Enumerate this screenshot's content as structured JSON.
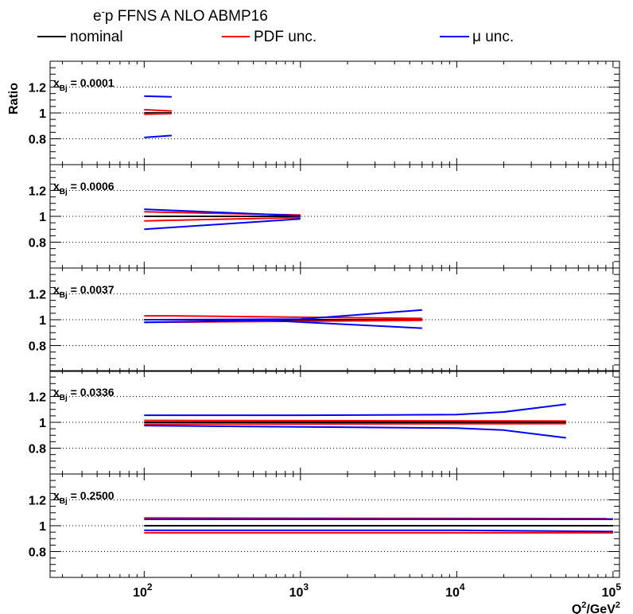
{
  "title_main": "e",
  "title_sup": "-",
  "title_rest": "p FFNS A NLO ABMP16",
  "legend": [
    {
      "label": "nominal",
      "color": "#000000"
    },
    {
      "label": "PDF unc.",
      "color": "#ff0000"
    },
    {
      "label": "μ unc.",
      "color": "#0000ff"
    }
  ],
  "chart_data": {
    "type": "line",
    "title": "e-p FFNS A NLO ABMP16",
    "xlabel": "Q2/GeV2",
    "xlabel_parts": {
      "q": "Q",
      "q_sup": "2",
      "mid": "/GeV",
      "gev_sup": "2"
    },
    "ylabel": "Ratio",
    "xscale": "log",
    "xlim": [
      25,
      110000
    ],
    "ylim": [
      0.6,
      1.4
    ],
    "x_ticks": [
      {
        "base": "10",
        "exp": "2",
        "value": 100
      },
      {
        "base": "10",
        "exp": "3",
        "value": 1000
      },
      {
        "base": "10",
        "exp": "4",
        "value": 10000
      },
      {
        "base": "10",
        "exp": "5",
        "value": 100000
      }
    ],
    "y_ticks": [
      "0.8",
      "1",
      "1.2"
    ],
    "y_tick_values": [
      0.8,
      1.0,
      1.2
    ],
    "panels": [
      {
        "label_main": "x",
        "label_sub": "Bj",
        "label_value": " = 0.0001",
        "series": [
          {
            "name": "nominal",
            "color": "#000000",
            "x": [
              100,
              150
            ],
            "y": [
              1.0,
              1.0
            ]
          },
          {
            "name": "PDF unc. upper",
            "color": "#ff0000",
            "x": [
              100,
              150
            ],
            "y": [
              1.025,
              1.015
            ]
          },
          {
            "name": "PDF unc. lower",
            "color": "#ff0000",
            "x": [
              100,
              150
            ],
            "y": [
              0.99,
              0.995
            ]
          },
          {
            "name": "μ unc. upper",
            "color": "#0000ff",
            "x": [
              100,
              150
            ],
            "y": [
              1.13,
              1.125
            ]
          },
          {
            "name": "μ unc. lower",
            "color": "#0000ff",
            "x": [
              100,
              150
            ],
            "y": [
              0.81,
              0.825
            ]
          }
        ]
      },
      {
        "label_main": "x",
        "label_sub": "Bj",
        "label_value": " = 0.0006",
        "series": [
          {
            "name": "nominal",
            "color": "#000000",
            "x": [
              100,
              1000
            ],
            "y": [
              1.0,
              1.0
            ]
          },
          {
            "name": "PDF unc. upper",
            "color": "#ff0000",
            "x": [
              100,
              1000
            ],
            "y": [
              1.035,
              1.01
            ]
          },
          {
            "name": "PDF unc. lower",
            "color": "#ff0000",
            "x": [
              100,
              1000
            ],
            "y": [
              0.965,
              0.99
            ]
          },
          {
            "name": "μ unc. upper",
            "color": "#0000ff",
            "x": [
              100,
              1000
            ],
            "y": [
              1.055,
              1.005
            ]
          },
          {
            "name": "μ unc. lower",
            "color": "#0000ff",
            "x": [
              100,
              1000
            ],
            "y": [
              0.9,
              0.98
            ]
          }
        ]
      },
      {
        "label_main": "x",
        "label_sub": "Bj",
        "label_value": " = 0.0037",
        "series": [
          {
            "name": "nominal",
            "color": "#000000",
            "x": [
              100,
              6000
            ],
            "y": [
              1.0,
              1.0
            ]
          },
          {
            "name": "PDF unc. upper",
            "color": "#ff0000",
            "x": [
              100,
              150,
              6000
            ],
            "y": [
              1.03,
              1.03,
              1.01
            ]
          },
          {
            "name": "PDF unc. lower",
            "color": "#ff0000",
            "x": [
              100,
              6000
            ],
            "y": [
              0.98,
              0.995
            ]
          },
          {
            "name": "μ unc. upper",
            "color": "#0000ff",
            "x": [
              100,
              1000,
              6000
            ],
            "y": [
              1.0,
              1.005,
              1.075
            ]
          },
          {
            "name": "μ unc. lower",
            "color": "#0000ff",
            "x": [
              100,
              600,
              6000
            ],
            "y": [
              0.98,
              0.995,
              0.935
            ]
          }
        ]
      },
      {
        "label_main": "x",
        "label_sub": "Bj",
        "label_value": " = 0.0336",
        "series": [
          {
            "name": "nominal",
            "color": "#000000",
            "x": [
              100,
              50000
            ],
            "y": [
              1.0,
              1.0
            ]
          },
          {
            "name": "PDF unc. upper",
            "color": "#ff0000",
            "x": [
              100,
              50000
            ],
            "y": [
              1.015,
              1.01
            ]
          },
          {
            "name": "PDF unc. lower",
            "color": "#ff0000",
            "x": [
              100,
              50000
            ],
            "y": [
              0.985,
              0.99
            ]
          },
          {
            "name": "μ unc. upper",
            "color": "#0000ff",
            "x": [
              100,
              1000,
              10000,
              20000,
              50000
            ],
            "y": [
              1.055,
              1.055,
              1.06,
              1.08,
              1.14
            ]
          },
          {
            "name": "μ unc. lower",
            "color": "#0000ff",
            "x": [
              100,
              1000,
              10000,
              20000,
              50000
            ],
            "y": [
              0.975,
              0.965,
              0.955,
              0.94,
              0.88
            ]
          }
        ]
      },
      {
        "label_main": "x",
        "label_sub": "Bj",
        "label_value": " = 0.2500",
        "series": [
          {
            "name": "nominal",
            "color": "#000000",
            "x": [
              100,
              100000
            ],
            "y": [
              1.0,
              1.0
            ]
          },
          {
            "name": "PDF unc. upper",
            "color": "#ff0000",
            "x": [
              100,
              100000
            ],
            "y": [
              1.06,
              1.055
            ]
          },
          {
            "name": "PDF unc. lower",
            "color": "#ff0000",
            "x": [
              100,
              100000
            ],
            "y": [
              0.945,
              0.945
            ]
          },
          {
            "name": "μ unc. upper",
            "color": "#0000ff",
            "x": [
              100,
              100000
            ],
            "y": [
              1.05,
              1.05
            ]
          },
          {
            "name": "μ unc. lower",
            "color": "#0000ff",
            "x": [
              100,
              10000,
              100000
            ],
            "y": [
              0.965,
              0.965,
              0.955
            ]
          }
        ]
      }
    ]
  }
}
